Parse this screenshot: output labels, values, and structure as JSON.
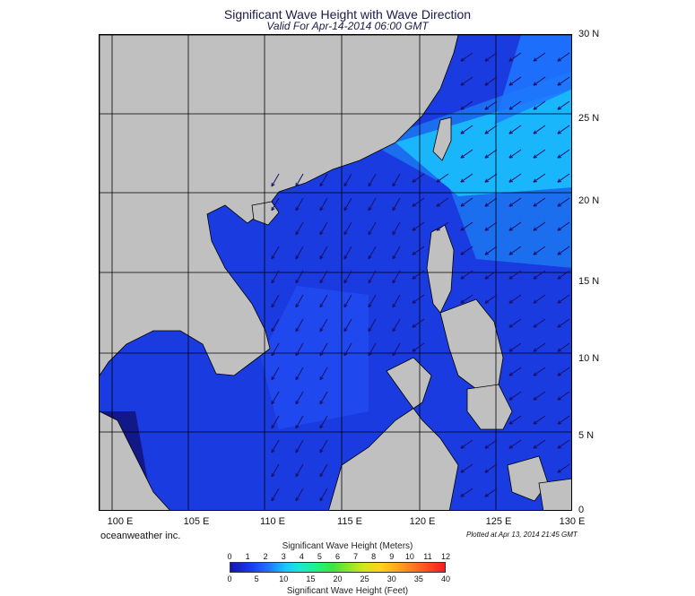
{
  "header": {
    "title": "Significant Wave Height with Wave Direction",
    "subtitle": "Valid For Apr-14-2014 06:00 GMT"
  },
  "map": {
    "lat_labels": [
      "30 N",
      "25 N",
      "20 N",
      "15 N",
      "10 N",
      "5 N",
      "0"
    ],
    "lon_labels": [
      "100 E",
      "105 E",
      "110 E",
      "115 E",
      "120 E",
      "125 E",
      "130 E"
    ],
    "extent": {
      "lon_min": 99,
      "lon_max": 130,
      "lat_min": 0,
      "lat_max": 30
    },
    "colors": {
      "land": "#c0c0c0",
      "water_low": "#1a3be0",
      "water_high": "#19d8ff",
      "arrow": "#1a0f66"
    }
  },
  "footer": {
    "brand": "oceanweather inc.",
    "plotted": "Plotted at Apr 13, 2014 21:45 GMT"
  },
  "legend": {
    "title_meters": "Significant Wave Height (Meters)",
    "title_feet": "Significant Wave Height (Feet)",
    "ticks_meters": [
      "0",
      "1",
      "2",
      "3",
      "4",
      "5",
      "6",
      "7",
      "8",
      "9",
      "10",
      "11",
      "12"
    ],
    "ticks_feet": [
      "0",
      "5",
      "10",
      "15",
      "20",
      "25",
      "30",
      "35",
      "40"
    ]
  }
}
